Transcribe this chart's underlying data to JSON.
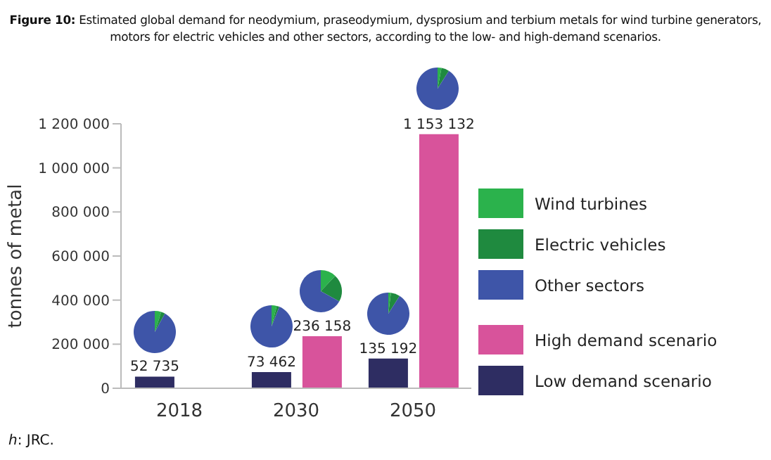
{
  "chart_data": [
    {
      "type": "bar",
      "title": "Figure 10: Estimated global demand for neodymium, praseodymium, dysprosium and terbium metals for wind turbine generators, motors for electric vehicles and other sectors, according to the low- and high-demand scenarios.",
      "ylabel": "tonnes of metal",
      "categories": [
        "2018",
        "2030",
        "2050"
      ],
      "series": [
        {
          "name": "Low demand scenario",
          "color": "#2e2d62",
          "values": [
            52735,
            73462,
            135192
          ],
          "value_labels": [
            "52 735",
            "73 462",
            "135 192"
          ]
        },
        {
          "name": "High demand scenario",
          "color": "#d8539b",
          "values": [
            null,
            236158,
            1153132
          ],
          "value_labels": [
            null,
            "236 158",
            "1 153 132"
          ]
        }
      ],
      "ylim": [
        0,
        1200000
      ],
      "yticks": [
        {
          "value": 0,
          "label": "0"
        },
        {
          "value": 200000,
          "label": "200 000"
        },
        {
          "value": 400000,
          "label": "400 000"
        },
        {
          "value": 600000,
          "label": "600 000"
        },
        {
          "value": 800000,
          "label": "800 000"
        },
        {
          "value": 1000000,
          "label": "1 000 000"
        },
        {
          "value": 1200000,
          "label": "1 200 000"
        }
      ],
      "legend": "right",
      "annotations": [
        "h: JRC."
      ]
    },
    {
      "type": "pie",
      "categories": [
        "Wind turbines",
        "Electric vehicles",
        "Other sectors"
      ],
      "values": [
        5,
        3,
        92
      ],
      "colors": [
        "#2bb24c",
        "#1f8a3f",
        "#3e55a8"
      ],
      "legend": "right"
    },
    {
      "type": "pie",
      "values": [
        4,
        2,
        94
      ],
      "colors": [
        "#2bb24c",
        "#1f8a3f",
        "#3e55a8"
      ]
    },
    {
      "type": "pie",
      "values": [
        12,
        21,
        67
      ],
      "colors": [
        "#2bb24c",
        "#1f8a3f",
        "#3e55a8"
      ]
    },
    {
      "type": "pie",
      "values": [
        2,
        7,
        91
      ],
      "colors": [
        "#2bb24c",
        "#1f8a3f",
        "#3e55a8"
      ]
    },
    {
      "type": "pie",
      "values": [
        3,
        6,
        91
      ],
      "colors": [
        "#2bb24c",
        "#1f8a3f",
        "#3e55a8"
      ]
    }
  ]
}
